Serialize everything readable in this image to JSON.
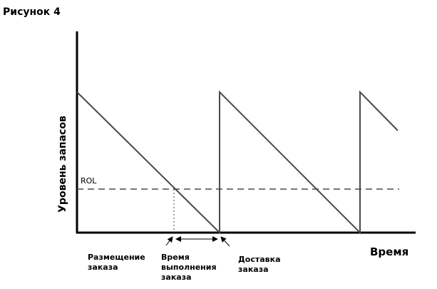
{
  "figure_title": "Рисунок 4",
  "axes": {
    "y_label": "Уровень запасов",
    "x_label": "Время"
  },
  "reorder_level": {
    "label": "ROL"
  },
  "annotations": {
    "order_placement": [
      "Размещение",
      "заказа"
    ],
    "lead_time": [
      "Время",
      "выполнения",
      "заказа"
    ],
    "order_delivery": [
      "Доставка",
      "заказа"
    ]
  },
  "colors": {
    "line": "#4a4a4a",
    "axis": "#000000",
    "dashed": "#4a4a4a"
  }
}
